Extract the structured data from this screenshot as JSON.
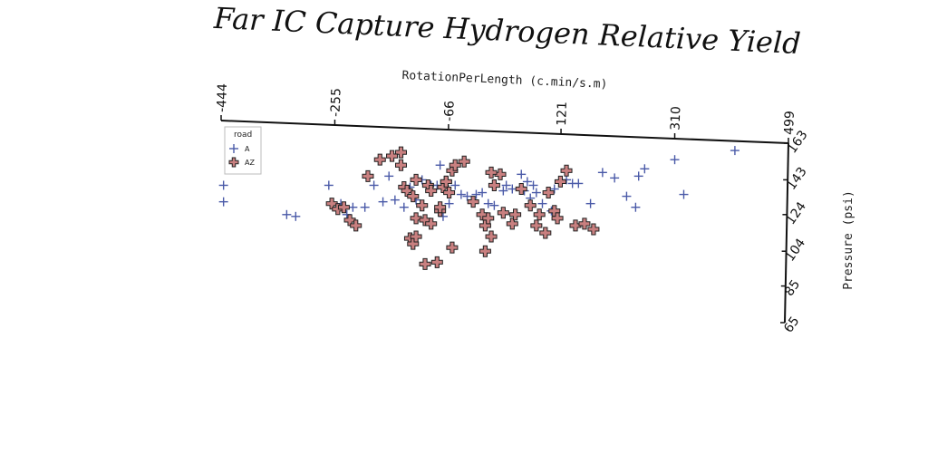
{
  "chart_data": {
    "type": "scatter",
    "title": "Far IC Capture Hydrogen Relative Yield",
    "xlabel": "RotationPerLength (c.min/s.m)",
    "ylabel": "Pressure (psi)",
    "x_ticks": [
      "-444",
      "-255",
      "-66",
      "121",
      "310",
      "499"
    ],
    "y_ticks": [
      "65",
      "85",
      "104",
      "124",
      "143",
      "163"
    ],
    "xlim": [
      -444,
      499
    ],
    "ylim": [
      65,
      163
    ],
    "legend": {
      "title": "road",
      "position": "top-left"
    },
    "series": [
      {
        "name": "A",
        "marker": "plus",
        "color": "#4a5aa8",
        "points": [
          [
            -440,
            140
          ],
          [
            -440,
            131
          ],
          [
            -265,
            140
          ],
          [
            -245,
            130
          ],
          [
            -235,
            124
          ],
          [
            -225,
            128
          ],
          [
            -205,
            128
          ],
          [
            -190,
            140
          ],
          [
            -175,
            131
          ],
          [
            -165,
            145
          ],
          [
            -155,
            132
          ],
          [
            -140,
            128
          ],
          [
            -130,
            139
          ],
          [
            -120,
            132
          ],
          [
            -110,
            143
          ],
          [
            -95,
            140
          ],
          [
            -85,
            140
          ],
          [
            -80,
            151
          ],
          [
            -75,
            123
          ],
          [
            -65,
            130
          ],
          [
            -55,
            140
          ],
          [
            -45,
            135
          ],
          [
            -35,
            134
          ],
          [
            -20,
            135
          ],
          [
            -10,
            136
          ],
          [
            0,
            130
          ],
          [
            10,
            129
          ],
          [
            25,
            137
          ],
          [
            30,
            140
          ],
          [
            40,
            138
          ],
          [
            55,
            146
          ],
          [
            60,
            137
          ],
          [
            65,
            142
          ],
          [
            70,
            133
          ],
          [
            75,
            140
          ],
          [
            80,
            136
          ],
          [
            90,
            130
          ],
          [
            105,
            126
          ],
          [
            110,
            138
          ],
          [
            130,
            143
          ],
          [
            140,
            141
          ],
          [
            150,
            141
          ],
          [
            170,
            130
          ],
          [
            190,
            147
          ],
          [
            210,
            144
          ],
          [
            230,
            134
          ],
          [
            245,
            128
          ],
          [
            250,
            145
          ],
          [
            260,
            149
          ],
          [
            310,
            154
          ],
          [
            325,
            135
          ],
          [
            410,
            159
          ],
          [
            -335,
            124
          ],
          [
            -320,
            123
          ]
        ]
      },
      {
        "name": "AZ",
        "marker": "cross",
        "color": "#c98080",
        "points": [
          [
            -145,
            158
          ],
          [
            -140,
            139
          ],
          [
            -135,
            137
          ],
          [
            -125,
            134
          ],
          [
            -120,
            143
          ],
          [
            -110,
            129
          ],
          [
            -100,
            140
          ],
          [
            -95,
            137
          ],
          [
            -120,
            122
          ],
          [
            -105,
            121
          ],
          [
            -95,
            119
          ],
          [
            -80,
            126
          ],
          [
            -130,
            111
          ],
          [
            -125,
            108
          ],
          [
            -80,
            128
          ],
          [
            -75,
            139
          ],
          [
            -70,
            142
          ],
          [
            -65,
            136
          ],
          [
            -60,
            148
          ],
          [
            -55,
            151
          ],
          [
            -40,
            153
          ],
          [
            -25,
            131
          ],
          [
            -10,
            124
          ],
          [
            -5,
            118
          ],
          [
            0,
            122
          ],
          [
            5,
            112
          ],
          [
            -5,
            104
          ],
          [
            10,
            140
          ],
          [
            20,
            146
          ],
          [
            25,
            125
          ],
          [
            40,
            119
          ],
          [
            45,
            124
          ],
          [
            55,
            138
          ],
          [
            70,
            129
          ],
          [
            80,
            118
          ],
          [
            85,
            124
          ],
          [
            95,
            114
          ],
          [
            100,
            136
          ],
          [
            110,
            126
          ],
          [
            115,
            122
          ],
          [
            120,
            142
          ],
          [
            130,
            148
          ],
          [
            145,
            118
          ],
          [
            -260,
            130
          ],
          [
            -250,
            127
          ],
          [
            -240,
            128
          ],
          [
            -230,
            121
          ],
          [
            -220,
            118
          ],
          [
            -200,
            145
          ],
          [
            -180,
            154
          ],
          [
            -160,
            156
          ],
          [
            -145,
            151
          ],
          [
            -120,
            112
          ],
          [
            -105,
            97
          ],
          [
            -85,
            98
          ],
          [
            -70,
            142
          ],
          [
            160,
            119
          ],
          [
            175,
            116
          ],
          [
            5,
            147
          ],
          [
            -60,
            106
          ]
        ]
      }
    ]
  }
}
